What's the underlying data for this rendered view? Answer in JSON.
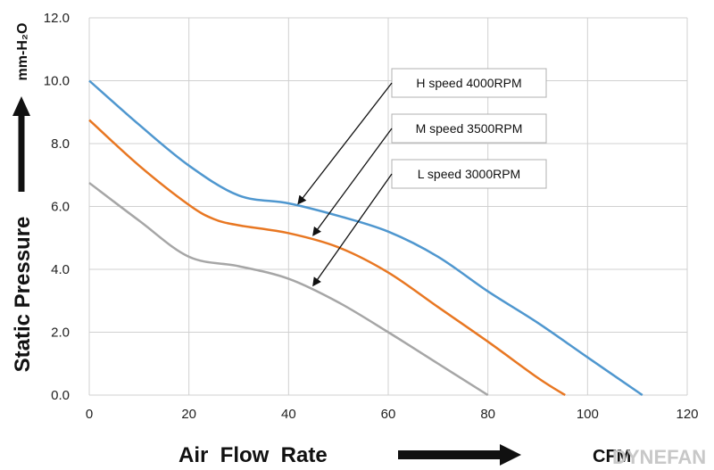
{
  "chart_data": {
    "type": "line",
    "title": "",
    "xlabel": "Air  Flow  Rate",
    "xunit": "CFM",
    "ylabel": "Static  Pressure",
    "yunit": "mm-H₂O",
    "xlim": [
      0,
      120
    ],
    "ylim": [
      0,
      12
    ],
    "xticks": [
      "0",
      "20",
      "40",
      "60",
      "80",
      "100",
      "120"
    ],
    "yticks": [
      "0.0",
      "2.0",
      "4.0",
      "6.0",
      "8.0",
      "10.0",
      "12.0"
    ],
    "grid": true,
    "series": [
      {
        "name": "H  speed  4000RPM",
        "color": "#4f97cf",
        "points": [
          [
            0,
            10.0
          ],
          [
            10,
            8.6
          ],
          [
            20,
            7.3
          ],
          [
            30,
            6.35
          ],
          [
            40,
            6.1
          ],
          [
            50,
            5.7
          ],
          [
            60,
            5.2
          ],
          [
            70,
            4.4
          ],
          [
            80,
            3.3
          ],
          [
            90,
            2.3
          ],
          [
            100,
            1.2
          ],
          [
            111,
            0.0
          ]
        ]
      },
      {
        "name": "M  speed  3500RPM",
        "color": "#e87722",
        "points": [
          [
            0,
            8.75
          ],
          [
            10,
            7.3
          ],
          [
            20,
            6.05
          ],
          [
            25,
            5.6
          ],
          [
            30,
            5.4
          ],
          [
            40,
            5.15
          ],
          [
            50,
            4.7
          ],
          [
            60,
            3.9
          ],
          [
            70,
            2.8
          ],
          [
            80,
            1.7
          ],
          [
            90,
            0.55
          ],
          [
            95.5,
            0.0
          ]
        ]
      },
      {
        "name": "L  speed  3000RPM",
        "color": "#a6a6a6",
        "points": [
          [
            0,
            6.75
          ],
          [
            10,
            5.55
          ],
          [
            20,
            4.4
          ],
          [
            30,
            4.1
          ],
          [
            40,
            3.7
          ],
          [
            50,
            2.95
          ],
          [
            60,
            2.0
          ],
          [
            70,
            1.0
          ],
          [
            80,
            0.0
          ]
        ]
      }
    ],
    "annotations": [
      {
        "text": "H  speed  4000RPM",
        "points_to": [
          42,
          6.1
        ]
      },
      {
        "text": "M  speed  3500RPM",
        "points_to": [
          45,
          5.1
        ]
      },
      {
        "text": "L  speed  3000RPM",
        "points_to": [
          45,
          3.5
        ]
      }
    ]
  },
  "watermark": "DYNEFAN",
  "arrow_color": "#111111",
  "grid_color": "#d0d0d0"
}
